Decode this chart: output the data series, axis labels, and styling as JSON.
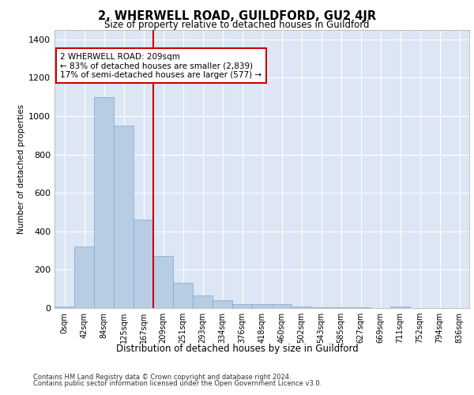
{
  "title": "2, WHERWELL ROAD, GUILDFORD, GU2 4JR",
  "subtitle": "Size of property relative to detached houses in Guildford",
  "xlabel": "Distribution of detached houses by size in Guildford",
  "ylabel": "Number of detached properties",
  "bar_color": "#b8cce4",
  "bar_edge_color": "#7aa8d0",
  "categories": [
    "0sqm",
    "42sqm",
    "84sqm",
    "125sqm",
    "167sqm",
    "209sqm",
    "251sqm",
    "293sqm",
    "334sqm",
    "376sqm",
    "418sqm",
    "460sqm",
    "502sqm",
    "543sqm",
    "585sqm",
    "627sqm",
    "669sqm",
    "711sqm",
    "752sqm",
    "794sqm",
    "836sqm"
  ],
  "values": [
    10,
    320,
    1100,
    950,
    460,
    270,
    130,
    65,
    40,
    20,
    20,
    20,
    10,
    5,
    5,
    5,
    0,
    10,
    0,
    0,
    0
  ],
  "ylim": [
    0,
    1450
  ],
  "yticks": [
    0,
    200,
    400,
    600,
    800,
    1000,
    1200,
    1400
  ],
  "vline_x": 5,
  "vline_color": "#cc0000",
  "annotation_text": "2 WHERWELL ROAD: 209sqm\n← 83% of detached houses are smaller (2,839)\n17% of semi-detached houses are larger (577) →",
  "annotation_box_color": "#ffffff",
  "annotation_box_edge": "#cc0000",
  "footer_line1": "Contains HM Land Registry data © Crown copyright and database right 2024.",
  "footer_line2": "Contains public sector information licensed under the Open Government Licence v3.0.",
  "plot_background": "#dce6f5",
  "grid_color": "#ffffff"
}
